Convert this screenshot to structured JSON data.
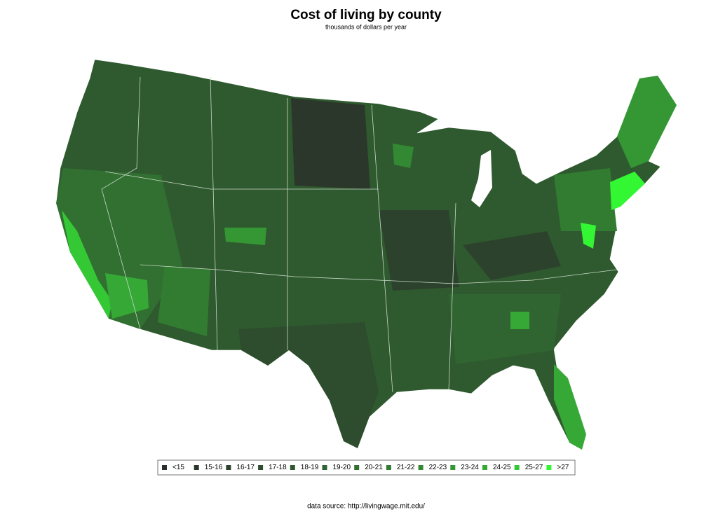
{
  "title": "Cost of living by county",
  "subtitle": "thousands of dollars per year",
  "legend": {
    "items": [
      {
        "label": "<15",
        "color": "#2b2f2b"
      },
      {
        "label": "15-16",
        "color": "#2c372c"
      },
      {
        "label": "16-17",
        "color": "#2d422d"
      },
      {
        "label": "17-18",
        "color": "#2e4d2e"
      },
      {
        "label": "18-19",
        "color": "#2f582f"
      },
      {
        "label": "19-20",
        "color": "#306430"
      },
      {
        "label": "20-21",
        "color": "#317031"
      },
      {
        "label": "21-22",
        "color": "#327c32"
      },
      {
        "label": "22-23",
        "color": "#338933"
      },
      {
        "label": "23-24",
        "color": "#349734"
      },
      {
        "label": "24-25",
        "color": "#35a835"
      },
      {
        "label": "25-27",
        "color": "#35c835"
      },
      {
        "label": ">27",
        "color": "#33f733"
      }
    ]
  },
  "source": "data source: http://livingwage.mit.edu/"
}
